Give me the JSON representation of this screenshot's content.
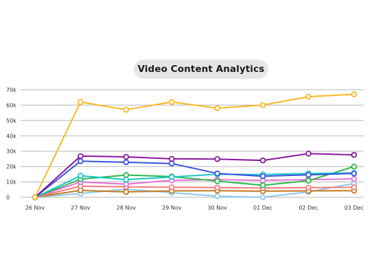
{
  "chart_data": {
    "type": "line",
    "title": "Video Content Analytics",
    "xlabel": "",
    "ylabel": "",
    "ylim": [
      0,
      70000
    ],
    "yticks": [
      0,
      10000,
      20000,
      30000,
      40000,
      50000,
      60000,
      70000
    ],
    "ytick_labels": [
      "0",
      "10k",
      "20k",
      "30k",
      "40k",
      "50k",
      "60k",
      "70k"
    ],
    "x": [
      "26 Nov",
      "27 Nov",
      "28 Nov",
      "29 Nov",
      "30 Nov",
      "01 Dec",
      "02 Dec",
      "03 Dec"
    ],
    "grid": true,
    "series": [
      {
        "color": "#fbb81d",
        "values": [
          0,
          62000,
          57000,
          62000,
          58000,
          60000,
          65500,
          67000
        ]
      },
      {
        "color": "#8a159d",
        "values": [
          0,
          26800,
          26300,
          25000,
          24900,
          24000,
          28400,
          27600
        ]
      },
      {
        "color": "#3652e0",
        "values": [
          0,
          23500,
          22800,
          22000,
          15500,
          13700,
          14600,
          15500
        ]
      },
      {
        "color": "#18c6c2",
        "values": [
          0,
          14000,
          11500,
          13200,
          15000,
          14800,
          15500,
          15800
        ]
      },
      {
        "color": "#2bb84b",
        "values": [
          0,
          11800,
          14500,
          13500,
          10500,
          7800,
          10800,
          20000
        ]
      },
      {
        "color": "#e571d6",
        "values": [
          0,
          10000,
          8500,
          11000,
          11500,
          11000,
          11500,
          12000
        ]
      },
      {
        "color": "#f6797a",
        "values": [
          0,
          7200,
          6800,
          6500,
          6300,
          6000,
          6300,
          6500
        ]
      },
      {
        "color": "#c07a1a",
        "values": [
          0,
          4500,
          3500,
          4200,
          4300,
          4000,
          4200,
          4300
        ]
      },
      {
        "color": "#8cc8f2",
        "values": [
          0,
          2500,
          5200,
          3000,
          700,
          0,
          3500,
          9000
        ]
      }
    ]
  }
}
